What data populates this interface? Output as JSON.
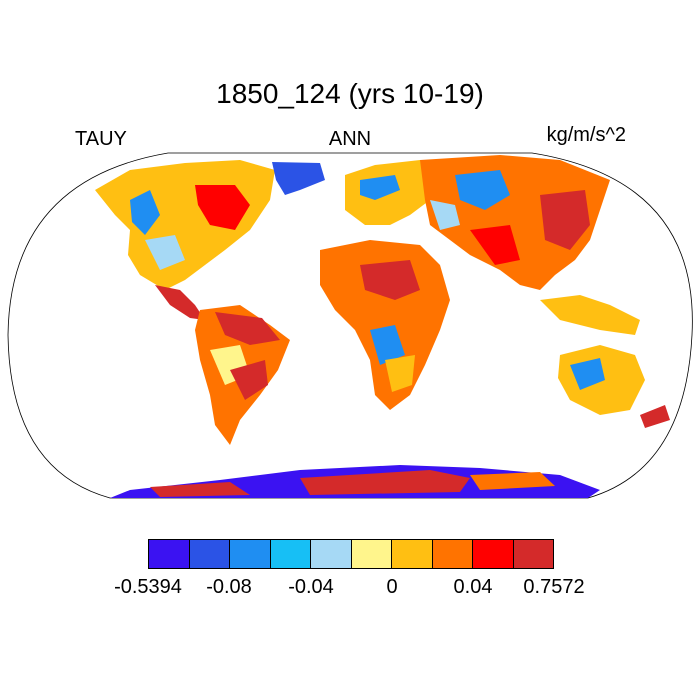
{
  "title": "1850_124 (yrs 10-19)",
  "variable": "TAUY",
  "period": "ANN",
  "units": "kg/m/s^2",
  "colorbar": {
    "colors": [
      "#3b12f2",
      "#2b53e6",
      "#1f8ef2",
      "#17bff5",
      "#a6d9f5",
      "#fff58c",
      "#ffbf12",
      "#ff7300",
      "#ff0000",
      "#d42a2a"
    ],
    "labels": [
      "-0.5394",
      "-0.08",
      "-0.04",
      "0",
      "0.04",
      "0.7572"
    ]
  }
}
